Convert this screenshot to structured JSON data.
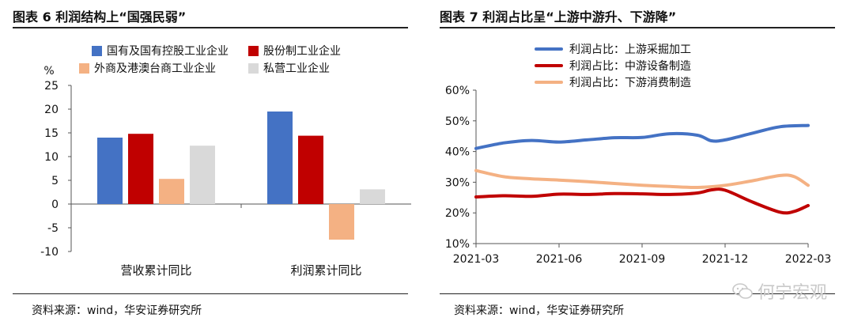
{
  "panel_left": {
    "title": "图表 6  利润结构上“国强民弱”",
    "source": "资料来源：wind，华安证券研究所"
  },
  "panel_right": {
    "title": "图表 7  利润占比呈“上游中游升、下游降”",
    "source": "资料来源：wind，华安证券研究所"
  },
  "watermark": "何宁宏观",
  "chart_data": [
    {
      "type": "bar",
      "title": "利润结构上“国强民弱”",
      "ylabel": "%",
      "ylim": [
        -10,
        25
      ],
      "yticks": [
        -10,
        -5,
        0,
        5,
        10,
        15,
        20,
        25
      ],
      "categories": [
        "营收累计同比",
        "利润累计同比"
      ],
      "series": [
        {
          "name": "国有及国有控股工业企业",
          "color": "#4472C4",
          "values": [
            14.0,
            19.5
          ]
        },
        {
          "name": "股份制工业企业",
          "color": "#C00000",
          "values": [
            14.8,
            14.4
          ]
        },
        {
          "name": "外商及港澳台商工业企业",
          "color": "#F4B183",
          "values": [
            5.3,
            -7.5
          ]
        },
        {
          "name": "私营工业企业",
          "color": "#D9D9D9",
          "values": [
            12.3,
            3.1
          ]
        }
      ],
      "legend": "top"
    },
    {
      "type": "line",
      "title": "利润占比呈“上游中游升、下游降”",
      "ylim": [
        10,
        60
      ],
      "yticks": [
        "10%",
        "20%",
        "30%",
        "40%",
        "50%",
        "60%"
      ],
      "xlim": [
        0,
        12
      ],
      "xticks": [
        {
          "x": 0,
          "label": "2021-03"
        },
        {
          "x": 3,
          "label": "2021-06"
        },
        {
          "x": 6,
          "label": "2021-09"
        },
        {
          "x": 9,
          "label": "2021-12"
        },
        {
          "x": 12,
          "label": "2022-03"
        }
      ],
      "series": [
        {
          "name": "利润占比：上游采掘加工",
          "color": "#4472C4",
          "x": [
            0,
            1,
            2,
            3,
            4,
            5,
            6,
            7,
            8,
            8.5,
            9,
            10,
            11,
            12
          ],
          "values": [
            41.0,
            42.8,
            43.6,
            43.1,
            43.8,
            44.5,
            44.6,
            45.8,
            45.3,
            43.5,
            43.8,
            46.0,
            48.1,
            48.5
          ]
        },
        {
          "name": "利润占比：中游设备制造",
          "color": "#C00000",
          "x": [
            0,
            1,
            2,
            3,
            4,
            5,
            6,
            7,
            8,
            8.5,
            9,
            10,
            11,
            11.5,
            12
          ],
          "values": [
            25.2,
            25.6,
            25.4,
            26.1,
            26.0,
            26.3,
            26.2,
            26.0,
            26.5,
            27.5,
            27.4,
            23.5,
            20.2,
            20.5,
            22.4
          ]
        },
        {
          "name": "利润占比：下游消费制造",
          "color": "#F4B183",
          "x": [
            0,
            1,
            2,
            3,
            4,
            5,
            6,
            7,
            8,
            9,
            10,
            11,
            11.5,
            12
          ],
          "values": [
            33.8,
            31.8,
            31.1,
            30.7,
            30.2,
            29.6,
            29.0,
            28.6,
            28.3,
            29.0,
            30.5,
            32.2,
            31.8,
            29.0
          ]
        }
      ],
      "legend": "top"
    }
  ]
}
